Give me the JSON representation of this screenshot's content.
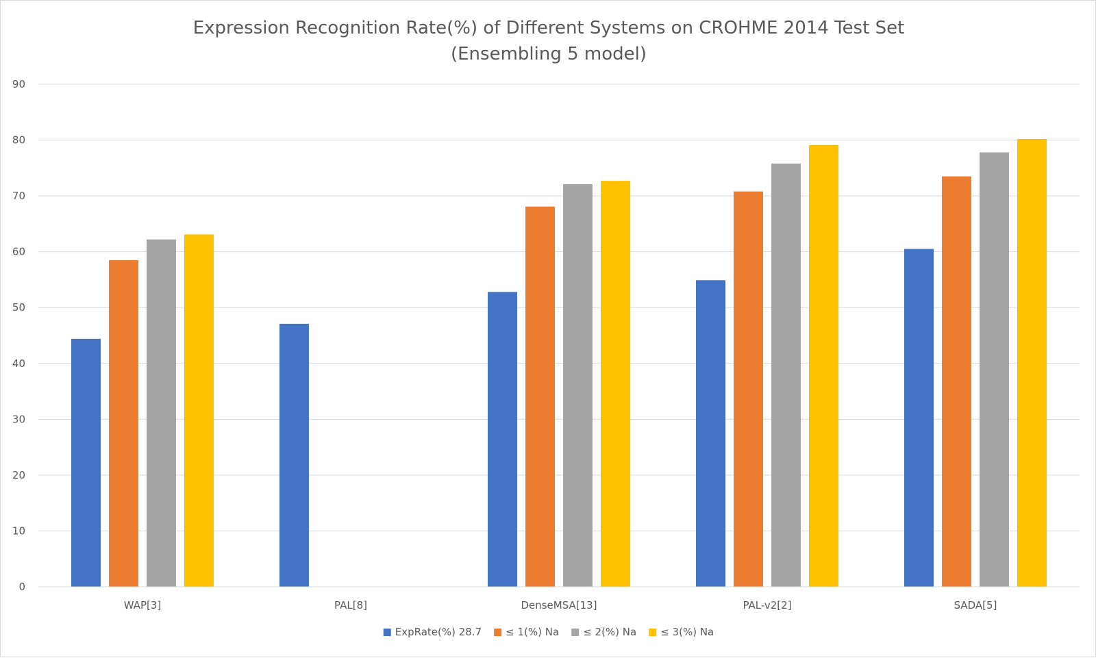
{
  "chart_data": {
    "type": "bar",
    "title": "Expression Recognition Rate(%) of Different Systems on CROHME 2014 Test Set",
    "subtitle": "(Ensembling 5 model)",
    "categories": [
      "WAP[3]",
      "PAL[8]",
      "DenseMSA[13]",
      "PAL-v2[2]",
      "SADA[5]"
    ],
    "series": [
      {
        "name": "ExpRate(%) 28.7",
        "color": "#4472c4",
        "values": [
          44.4,
          47.1,
          52.8,
          54.9,
          60.5
        ]
      },
      {
        "name": "≤ 1(%) Na",
        "color": "#ed7d31",
        "values": [
          58.5,
          null,
          68.1,
          70.8,
          73.5
        ]
      },
      {
        "name": "≤ 2(%) Na",
        "color": "#a5a5a5",
        "values": [
          62.2,
          null,
          72.1,
          75.8,
          77.8
        ]
      },
      {
        "name": "≤ 3(%) Na",
        "color": "#ffc000",
        "values": [
          63.1,
          null,
          72.7,
          79.1,
          80.2
        ]
      }
    ],
    "ylim": [
      0,
      90
    ],
    "yticks": [
      0,
      10,
      20,
      30,
      40,
      50,
      60,
      70,
      80,
      90
    ],
    "xlabel": "",
    "ylabel": "",
    "grid": true,
    "legend": "bottom"
  }
}
